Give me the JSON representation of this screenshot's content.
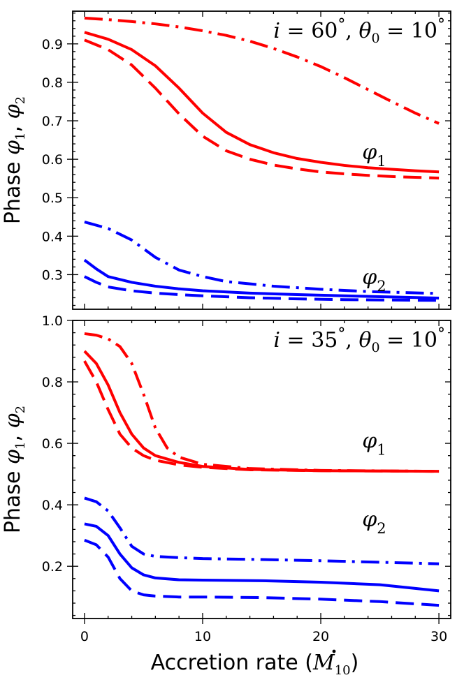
{
  "chart_data": [
    {
      "type": "line",
      "panel": "top",
      "annotation": {
        "i": "60",
        "theta0": "10"
      },
      "xlim": [
        -1,
        31
      ],
      "ylim": [
        0.21,
        0.985
      ],
      "yticks": [
        0.3,
        0.4,
        0.5,
        0.6,
        0.7,
        0.8,
        0.9
      ],
      "ytick_labels": [
        "0.3",
        "0.4",
        "0.5",
        "0.6",
        "0.7",
        "0.8",
        "0.9"
      ],
      "ylabel": {
        "prefix": "Phase ",
        "sym1": "φ",
        "sub1": "1",
        "sep": ", ",
        "sym2": "φ",
        "sub2": "2"
      },
      "curve_labels": [
        {
          "sym": "φ",
          "sub": "1",
          "x": 23.5,
          "y": 0.6
        },
        {
          "sym": "φ",
          "sub": "2",
          "x": 23.5,
          "y": 0.275
        }
      ],
      "series": [
        {
          "name": "phi1 solid",
          "color": "#ff0000",
          "dash": "solid",
          "x": [
            0,
            2,
            4,
            6,
            8,
            10,
            12,
            14,
            16,
            18,
            20,
            22,
            24,
            26,
            28,
            30
          ],
          "y": [
            0.93,
            0.912,
            0.885,
            0.843,
            0.785,
            0.72,
            0.67,
            0.638,
            0.617,
            0.602,
            0.592,
            0.584,
            0.578,
            0.574,
            0.57,
            0.567
          ]
        },
        {
          "name": "phi1 dashed",
          "color": "#ff0000",
          "dash": "dashed",
          "x": [
            0,
            2,
            4,
            6,
            8,
            10,
            12,
            14,
            16,
            18,
            20,
            22,
            24,
            26,
            28,
            30
          ],
          "y": [
            0.91,
            0.885,
            0.845,
            0.785,
            0.718,
            0.66,
            0.622,
            0.6,
            0.585,
            0.575,
            0.567,
            0.562,
            0.558,
            0.555,
            0.553,
            0.551
          ]
        },
        {
          "name": "phi1 dash-dot",
          "color": "#ff0000",
          "dash": "dashdot",
          "x": [
            0,
            2,
            4,
            6,
            8,
            10,
            12,
            14,
            16,
            18,
            20,
            22,
            24,
            26,
            28,
            30
          ],
          "y": [
            0.967,
            0.963,
            0.958,
            0.952,
            0.944,
            0.934,
            0.922,
            0.907,
            0.888,
            0.866,
            0.841,
            0.812,
            0.781,
            0.75,
            0.72,
            0.693
          ]
        },
        {
          "name": "phi2 solid",
          "color": "#0000ff",
          "dash": "solid",
          "x": [
            0,
            1,
            2,
            4,
            6,
            8,
            10,
            14,
            18,
            22,
            26,
            30
          ],
          "y": [
            0.338,
            0.315,
            0.295,
            0.28,
            0.27,
            0.263,
            0.258,
            0.252,
            0.248,
            0.245,
            0.242,
            0.239
          ]
        },
        {
          "name": "phi2 dashed",
          "color": "#0000ff",
          "dash": "dashed",
          "x": [
            0,
            1,
            2,
            4,
            6,
            8,
            10,
            14,
            18,
            22,
            26,
            30
          ],
          "y": [
            0.295,
            0.28,
            0.268,
            0.258,
            0.252,
            0.248,
            0.245,
            0.24,
            0.237,
            0.235,
            0.234,
            0.233
          ]
        },
        {
          "name": "phi2 dash-dot",
          "color": "#0000ff",
          "dash": "dashdot",
          "x": [
            0,
            2,
            4,
            6,
            8,
            10,
            12,
            16,
            20,
            24,
            30
          ],
          "y": [
            0.437,
            0.42,
            0.39,
            0.345,
            0.312,
            0.295,
            0.282,
            0.27,
            0.262,
            0.256,
            0.251
          ]
        }
      ]
    },
    {
      "type": "line",
      "panel": "bottom",
      "annotation": {
        "i": "35",
        "theta0": "10"
      },
      "xlim": [
        -1,
        31
      ],
      "ylim": [
        0.03,
        1.0
      ],
      "yticks": [
        0.2,
        0.4,
        0.6,
        0.8,
        1.0
      ],
      "ytick_labels": [
        "0.2",
        "0.4",
        "0.6",
        "0.8",
        "1.0"
      ],
      "xticks": [
        0,
        10,
        20,
        30
      ],
      "xtick_labels": [
        "0",
        "10",
        "20",
        "30"
      ],
      "xlabel": {
        "text": "Accretion rate (",
        "sym": "M",
        "sub": "10",
        "close": ")"
      },
      "ylabel": {
        "prefix": "Phase ",
        "sym1": "φ",
        "sub1": "1",
        "sep": ", ",
        "sym2": "φ",
        "sub2": "2"
      },
      "curve_labels": [
        {
          "sym": "φ",
          "sub": "1",
          "x": 23.5,
          "y": 0.585
        },
        {
          "sym": "φ",
          "sub": "2",
          "x": 23.5,
          "y": 0.33
        }
      ],
      "series": [
        {
          "name": "phi1 solid",
          "color": "#ff0000",
          "dash": "solid",
          "x": [
            0,
            1,
            2,
            3,
            4,
            5,
            6,
            8,
            10,
            14,
            20,
            30
          ],
          "y": [
            0.9,
            0.86,
            0.79,
            0.7,
            0.63,
            0.585,
            0.56,
            0.538,
            0.525,
            0.515,
            0.511,
            0.509
          ]
        },
        {
          "name": "phi1 dashed",
          "color": "#ff0000",
          "dash": "dashed",
          "x": [
            0,
            1,
            2,
            3,
            4,
            5,
            6,
            8,
            10,
            14,
            20,
            30
          ],
          "y": [
            0.868,
            0.8,
            0.71,
            0.63,
            0.585,
            0.56,
            0.545,
            0.53,
            0.522,
            0.514,
            0.511,
            0.509
          ]
        },
        {
          "name": "phi1 dash-dot",
          "color": "#ff0000",
          "dash": "dashdot",
          "x": [
            0,
            1,
            2,
            3,
            4,
            5,
            6,
            7,
            8,
            10,
            14,
            20,
            30
          ],
          "y": [
            0.957,
            0.952,
            0.94,
            0.915,
            0.86,
            0.76,
            0.65,
            0.585,
            0.555,
            0.532,
            0.518,
            0.512,
            0.509
          ]
        },
        {
          "name": "phi2 solid",
          "color": "#0000ff",
          "dash": "solid",
          "x": [
            0,
            1,
            2,
            3,
            4,
            5,
            6,
            8,
            10,
            15,
            20,
            25,
            30
          ],
          "y": [
            0.338,
            0.33,
            0.3,
            0.24,
            0.195,
            0.172,
            0.162,
            0.156,
            0.155,
            0.153,
            0.148,
            0.14,
            0.12
          ]
        },
        {
          "name": "phi2 dashed",
          "color": "#0000ff",
          "dash": "dashed",
          "x": [
            0,
            1,
            2,
            3,
            4,
            5,
            6,
            8,
            10,
            15,
            20,
            25,
            30
          ],
          "y": [
            0.285,
            0.27,
            0.23,
            0.16,
            0.12,
            0.107,
            0.103,
            0.1,
            0.1,
            0.098,
            0.093,
            0.085,
            0.073
          ]
        },
        {
          "name": "phi2 dash-dot",
          "color": "#0000ff",
          "dash": "dashdot",
          "x": [
            0,
            1,
            2,
            3,
            4,
            5,
            6,
            8,
            10,
            15,
            20,
            25,
            30
          ],
          "y": [
            0.422,
            0.41,
            0.38,
            0.325,
            0.265,
            0.24,
            0.232,
            0.228,
            0.225,
            0.222,
            0.218,
            0.213,
            0.208
          ]
        }
      ]
    }
  ]
}
